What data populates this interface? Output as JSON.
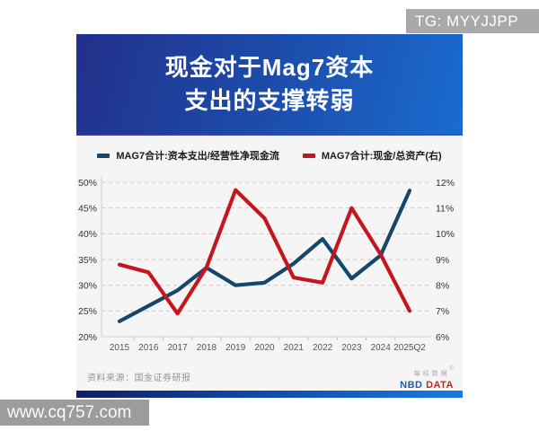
{
  "overlays": {
    "tg_badge": "TG: MYYJJPP",
    "site_watermark": "www.cq757.com"
  },
  "banner": {
    "title_line1": "现金对于Mag7资本",
    "title_line2": "支出的支撑转弱"
  },
  "chart_data": {
    "type": "line",
    "categories": [
      "2015",
      "2016",
      "2017",
      "2018",
      "2019",
      "2020",
      "2021",
      "2022",
      "2023",
      "2024",
      "2025Q2"
    ],
    "series": [
      {
        "name": "MAG7合计:资本支出/经营性净现金流",
        "axis": "left",
        "color": "#15476b",
        "values": [
          23,
          26,
          29,
          33.4,
          30,
          30.5,
          34.2,
          39,
          31.3,
          35.8,
          48.4
        ]
      },
      {
        "name": "MAG7合计:现金/总资产(右)",
        "axis": "right",
        "color": "#c4161d",
        "values": [
          8.8,
          8.5,
          6.9,
          8.7,
          11.7,
          10.6,
          8.3,
          8.1,
          11.0,
          9.2,
          7.0
        ]
      }
    ],
    "left_axis": {
      "min": 20,
      "max": 50,
      "step": 5,
      "tick_labels": [
        "50%",
        "45%",
        "40%",
        "35%",
        "30%",
        "25%",
        "20%"
      ]
    },
    "right_axis": {
      "min": 6,
      "max": 12,
      "step": 1,
      "tick_labels": [
        "12%",
        "11%",
        "10%",
        "9%",
        "8%",
        "7%",
        "6%"
      ]
    },
    "grid": "horizontal-dashed",
    "legend_position": "top-center"
  },
  "footer": {
    "source": "资料来源：国金证券研报",
    "logo": {
      "cn": "每经数据",
      "mark": "©",
      "nbd": "NBD",
      "data": "DATA"
    }
  }
}
